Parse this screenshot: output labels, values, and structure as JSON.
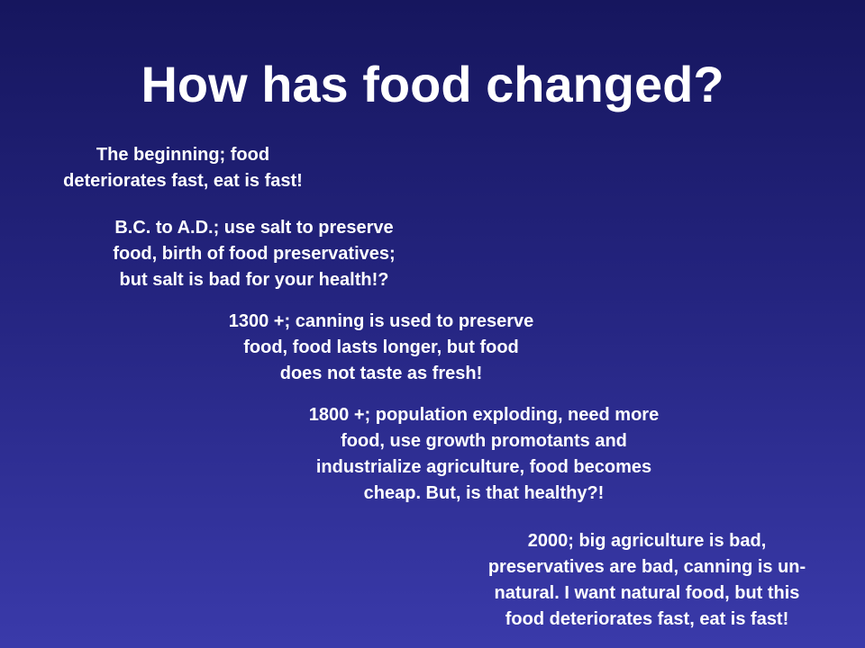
{
  "title": "How has food changed?",
  "blocks": [
    {
      "lines": [
        "The beginning; food",
        "deteriorates fast, eat is fast!"
      ]
    },
    {
      "lines": [
        "B.C. to A.D.; use salt to preserve",
        "food, birth of food preservatives;",
        "but salt is bad for your health!?"
      ]
    },
    {
      "lines": [
        "1300 +; canning is used to preserve",
        "food, food lasts longer, but food",
        "does not taste as fresh!"
      ]
    },
    {
      "lines": [
        "1800 +; population exploding, need more",
        "food, use growth promotants and",
        "industrialize agriculture, food becomes",
        "cheap.  But, is that healthy?!"
      ]
    },
    {
      "lines": [
        "2000; big agriculture is bad,",
        "preservatives are bad, canning is un-",
        "natural.  I want natural food, but this",
        "food deteriorates fast, eat is fast!"
      ]
    }
  ]
}
